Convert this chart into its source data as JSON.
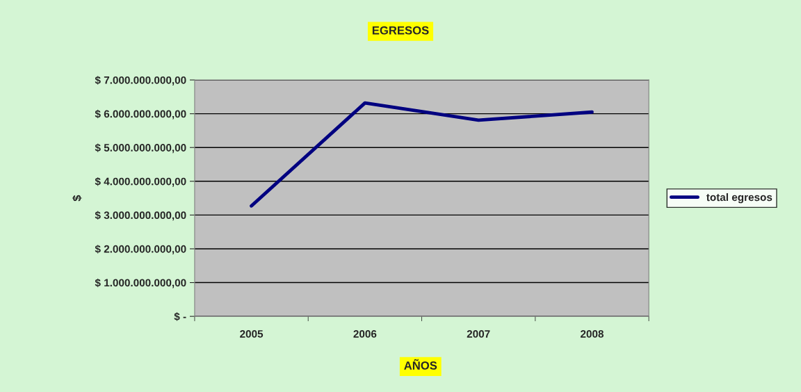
{
  "chart_data": {
    "type": "line",
    "title": "EGRESOS",
    "xlabel": "AÑOS",
    "ylabel": "$",
    "categories": [
      "2005",
      "2006",
      "2007",
      "2008"
    ],
    "series": [
      {
        "name": "total egresos",
        "color": "#000080",
        "values": [
          3270000000,
          6320000000,
          5810000000,
          6050000000
        ]
      }
    ],
    "ylim": [
      0,
      7000000000
    ],
    "yticks": [
      {
        "value": 0,
        "label": "$ -"
      },
      {
        "value": 1000000000,
        "label": "$ 1.000.000.000,00"
      },
      {
        "value": 2000000000,
        "label": "$ 2.000.000.000,00"
      },
      {
        "value": 3000000000,
        "label": "$ 3.000.000.000,00"
      },
      {
        "value": 4000000000,
        "label": "$ 4.000.000.000,00"
      },
      {
        "value": 5000000000,
        "label": "$ 5.000.000.000,00"
      },
      {
        "value": 6000000000,
        "label": "$ 6.000.000.000,00"
      },
      {
        "value": 7000000000,
        "label": "$ 7.000.000.000,00"
      }
    ],
    "grid": "y",
    "legend": "right",
    "line_style": "solid",
    "marker": "none"
  }
}
